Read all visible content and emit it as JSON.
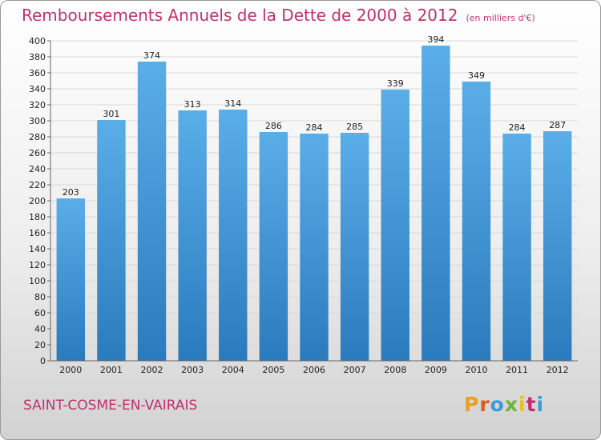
{
  "header": {
    "title": "Remboursements Annuels de la Dette de 2000 à 2012",
    "subtitle": "(en milliers d'€)"
  },
  "footer": {
    "commune": "SAINT-COSME-EN-VAIRAIS",
    "logo": "Proxiti"
  },
  "colors": {
    "title": "#c0306a",
    "bar_top": "#5aaee8",
    "bar_bottom": "#2a7bbd",
    "logo_letters": [
      "#e8a020",
      "#e05a20",
      "#3a9ad9",
      "#6cb33f",
      "#e8c020",
      "#c0306a",
      "#3a9ad9"
    ]
  },
  "chart_data": {
    "type": "bar",
    "title": "Remboursements Annuels de la Dette de 2000 à 2012",
    "categories": [
      "2000",
      "2001",
      "2002",
      "2003",
      "2004",
      "2005",
      "2006",
      "2007",
      "2008",
      "2009",
      "2010",
      "2011",
      "2012"
    ],
    "values": [
      203,
      301,
      374,
      313,
      314,
      286,
      284,
      285,
      339,
      394,
      349,
      284,
      287
    ],
    "yticks": [
      0,
      20,
      40,
      60,
      80,
      100,
      120,
      140,
      160,
      180,
      200,
      220,
      240,
      260,
      280,
      300,
      320,
      340,
      360,
      380,
      400
    ],
    "ylim": [
      0,
      400
    ],
    "xlabel": "",
    "ylabel": "",
    "grid": true,
    "legend": "none"
  }
}
